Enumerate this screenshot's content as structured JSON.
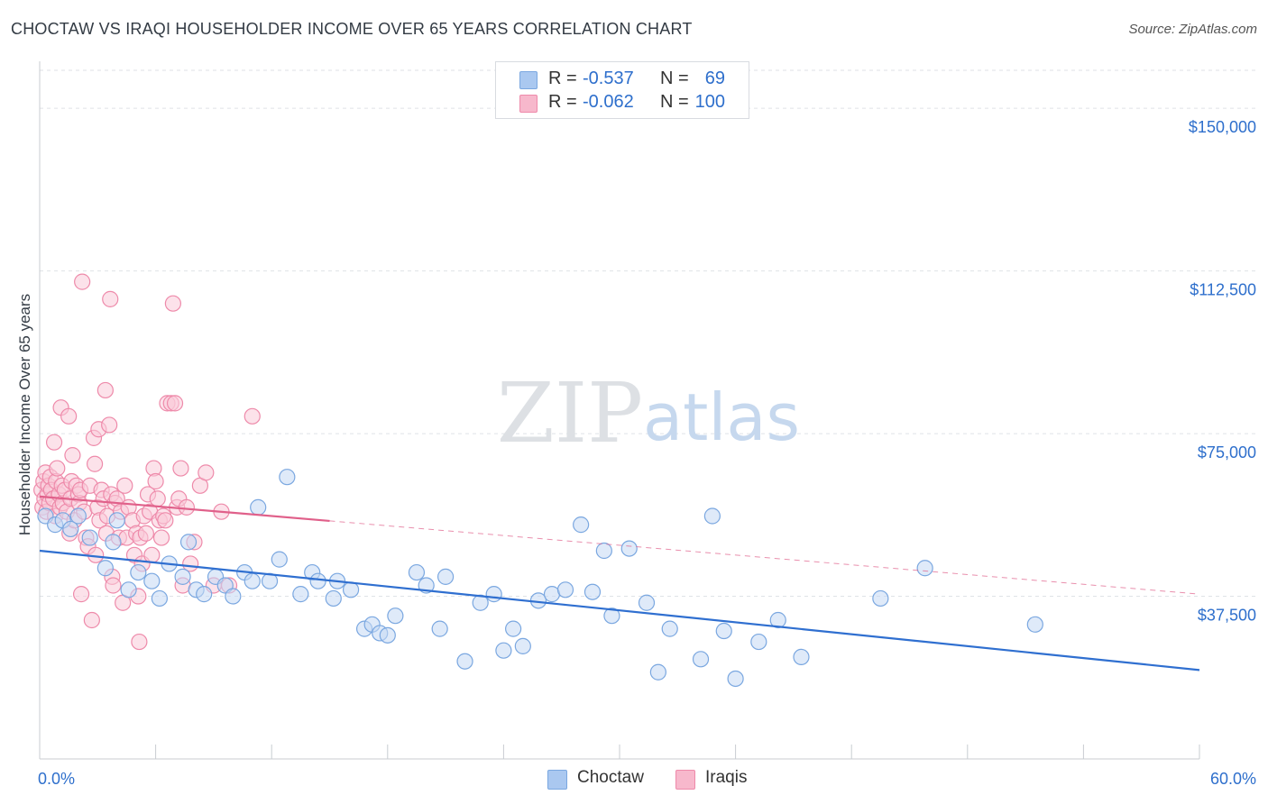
{
  "title": "CHOCTAW VS IRAQI HOUSEHOLDER INCOME OVER 65 YEARS CORRELATION CHART",
  "source": "Source: ZipAtlas.com",
  "watermark": {
    "zip": "ZIP",
    "atlas": "atlas"
  },
  "legend": {
    "rows": [
      {
        "r_label": "R =",
        "r_value": "-0.537",
        "n_label": "N =",
        "n_value": "69",
        "color": "#aac8f0",
        "border": "#7aa7e0"
      },
      {
        "r_label": "R =",
        "r_value": "-0.062",
        "n_label": "N =",
        "n_value": "100",
        "color": "#f7b8cc",
        "border": "#ee8aaa"
      }
    ]
  },
  "bottom_legend": [
    {
      "name": "Choctaw",
      "color": "#aac8f0",
      "border": "#7aa7e0"
    },
    {
      "name": "Iraqis",
      "color": "#f7b8cc",
      "border": "#ee8aaa"
    }
  ],
  "chart_data": {
    "type": "scatter",
    "title": "CHOCTAW VS IRAQI HOUSEHOLDER INCOME OVER 65 YEARS CORRELATION CHART",
    "xlabel": "",
    "ylabel": "Householder Income Over 65 years",
    "xlim": [
      0,
      60
    ],
    "ylim": [
      0,
      160000
    ],
    "x_tick_labels": [
      "0.0%",
      "60.0%"
    ],
    "y_ticks": [
      37500,
      75000,
      112500,
      150000
    ],
    "y_tick_labels": [
      "$37,500",
      "$75,000",
      "$112,500",
      "$150,000"
    ],
    "grid": "horizontal dashed",
    "legend_position": "top-center",
    "series": [
      {
        "name": "Choctaw",
        "color": "#7aa7e0",
        "fill": "#c5d9f4",
        "trend_color": "#2f6fd0",
        "trend": {
          "x_start": 0,
          "y_start": 48000,
          "x_end": 60,
          "y_end": 20500,
          "dashed_from": 60
        },
        "points": [
          [
            0.3,
            56000
          ],
          [
            0.8,
            54000
          ],
          [
            1.2,
            55000
          ],
          [
            1.6,
            53000
          ],
          [
            2.0,
            56000
          ],
          [
            2.6,
            51000
          ],
          [
            3.4,
            44000
          ],
          [
            3.8,
            50000
          ],
          [
            4.0,
            55000
          ],
          [
            4.6,
            39000
          ],
          [
            5.1,
            43000
          ],
          [
            5.8,
            41000
          ],
          [
            6.2,
            37000
          ],
          [
            6.7,
            45000
          ],
          [
            7.4,
            42000
          ],
          [
            7.7,
            50000
          ],
          [
            8.1,
            39000
          ],
          [
            8.5,
            38000
          ],
          [
            9.1,
            42000
          ],
          [
            9.6,
            40000
          ],
          [
            10.0,
            37500
          ],
          [
            10.6,
            43000
          ],
          [
            11.0,
            41000
          ],
          [
            11.3,
            58000
          ],
          [
            11.9,
            41000
          ],
          [
            12.4,
            46000
          ],
          [
            12.8,
            65000
          ],
          [
            13.5,
            38000
          ],
          [
            14.1,
            43000
          ],
          [
            14.4,
            41000
          ],
          [
            15.2,
            37000
          ],
          [
            15.4,
            41000
          ],
          [
            16.1,
            39000
          ],
          [
            16.8,
            30000
          ],
          [
            17.2,
            31000
          ],
          [
            17.6,
            29000
          ],
          [
            18.0,
            28500
          ],
          [
            18.4,
            33000
          ],
          [
            19.5,
            43000
          ],
          [
            20.0,
            40000
          ],
          [
            20.7,
            30000
          ],
          [
            21.0,
            42000
          ],
          [
            22.0,
            22500
          ],
          [
            22.8,
            36000
          ],
          [
            23.5,
            38000
          ],
          [
            24.0,
            25000
          ],
          [
            24.5,
            30000
          ],
          [
            25.0,
            26000
          ],
          [
            25.8,
            36500
          ],
          [
            26.5,
            38000
          ],
          [
            27.2,
            39000
          ],
          [
            28.0,
            54000
          ],
          [
            28.6,
            38500
          ],
          [
            29.2,
            48000
          ],
          [
            29.6,
            33000
          ],
          [
            30.5,
            48500
          ],
          [
            31.4,
            36000
          ],
          [
            32.0,
            20000
          ],
          [
            32.6,
            30000
          ],
          [
            34.2,
            23000
          ],
          [
            34.8,
            56000
          ],
          [
            35.4,
            29500
          ],
          [
            36.0,
            18500
          ],
          [
            37.2,
            27000
          ],
          [
            38.2,
            32000
          ],
          [
            39.4,
            23500
          ],
          [
            43.5,
            37000
          ],
          [
            45.8,
            44000
          ],
          [
            51.5,
            31000
          ]
        ]
      },
      {
        "name": "Iraqis",
        "color": "#ee8aaa",
        "fill": "#f9cbd9",
        "trend_color": "#e0608a",
        "trend": {
          "x_start": 0,
          "y_start": 60500,
          "x_end": 60,
          "y_end": 38000,
          "dashed_from": 15
        },
        "points": [
          [
            0.1,
            62000
          ],
          [
            0.15,
            58000
          ],
          [
            0.2,
            64000
          ],
          [
            0.25,
            60000
          ],
          [
            0.3,
            66000
          ],
          [
            0.35,
            57000
          ],
          [
            0.4,
            61000
          ],
          [
            0.45,
            63000
          ],
          [
            0.5,
            59000
          ],
          [
            0.55,
            65000
          ],
          [
            0.6,
            62000
          ],
          [
            0.7,
            60000
          ],
          [
            0.75,
            73000
          ],
          [
            0.8,
            56000
          ],
          [
            0.85,
            64000
          ],
          [
            0.9,
            67000
          ],
          [
            1.0,
            61000
          ],
          [
            1.05,
            58000
          ],
          [
            1.1,
            81000
          ],
          [
            1.15,
            63000
          ],
          [
            1.2,
            59000
          ],
          [
            1.3,
            62000
          ],
          [
            1.4,
            57000
          ],
          [
            1.5,
            79000
          ],
          [
            1.55,
            52000
          ],
          [
            1.6,
            60000
          ],
          [
            1.65,
            64000
          ],
          [
            1.7,
            70000
          ],
          [
            1.8,
            55000
          ],
          [
            1.9,
            63000
          ],
          [
            2.0,
            61000
          ],
          [
            2.05,
            59000
          ],
          [
            2.1,
            62000
          ],
          [
            2.15,
            38000
          ],
          [
            2.2,
            110000
          ],
          [
            2.3,
            57000
          ],
          [
            2.4,
            51000
          ],
          [
            2.5,
            49000
          ],
          [
            2.6,
            63000
          ],
          [
            2.7,
            32000
          ],
          [
            2.8,
            74000
          ],
          [
            2.85,
            68000
          ],
          [
            2.9,
            47000
          ],
          [
            3.0,
            58000
          ],
          [
            3.05,
            76000
          ],
          [
            3.1,
            55000
          ],
          [
            3.2,
            62000
          ],
          [
            3.3,
            60000
          ],
          [
            3.4,
            85000
          ],
          [
            3.45,
            52000
          ],
          [
            3.5,
            56000
          ],
          [
            3.6,
            77000
          ],
          [
            3.65,
            106000
          ],
          [
            3.7,
            61000
          ],
          [
            3.75,
            42000
          ],
          [
            3.8,
            40000
          ],
          [
            3.9,
            59000
          ],
          [
            4.0,
            60000
          ],
          [
            4.1,
            51000
          ],
          [
            4.2,
            57000
          ],
          [
            4.3,
            36000
          ],
          [
            4.4,
            63000
          ],
          [
            4.5,
            51000
          ],
          [
            4.6,
            58000
          ],
          [
            4.8,
            55000
          ],
          [
            4.9,
            47000
          ],
          [
            5.0,
            52000
          ],
          [
            5.1,
            37500
          ],
          [
            5.15,
            27000
          ],
          [
            5.2,
            51000
          ],
          [
            5.3,
            45000
          ],
          [
            5.4,
            56000
          ],
          [
            5.5,
            52000
          ],
          [
            5.6,
            61000
          ],
          [
            5.7,
            57000
          ],
          [
            5.8,
            47000
          ],
          [
            5.9,
            67000
          ],
          [
            6.0,
            64000
          ],
          [
            6.1,
            60000
          ],
          [
            6.2,
            55000
          ],
          [
            6.3,
            51000
          ],
          [
            6.4,
            56000
          ],
          [
            6.5,
            55000
          ],
          [
            6.6,
            82000
          ],
          [
            6.8,
            82000
          ],
          [
            6.9,
            105000
          ],
          [
            7.0,
            82000
          ],
          [
            7.1,
            58000
          ],
          [
            7.2,
            60000
          ],
          [
            7.3,
            67000
          ],
          [
            7.4,
            40000
          ],
          [
            7.6,
            58000
          ],
          [
            7.8,
            45000
          ],
          [
            8.0,
            50000
          ],
          [
            8.3,
            63000
          ],
          [
            8.6,
            66000
          ],
          [
            9.0,
            40000
          ],
          [
            9.4,
            57000
          ],
          [
            9.8,
            40000
          ],
          [
            11.0,
            79000
          ]
        ]
      }
    ]
  }
}
